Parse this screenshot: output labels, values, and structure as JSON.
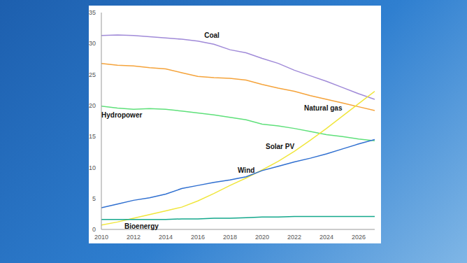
{
  "chart_data": {
    "type": "line",
    "x": [
      2010,
      2011,
      2012,
      2013,
      2014,
      2015,
      2016,
      2017,
      2018,
      2019,
      2020,
      2021,
      2022,
      2023,
      2024,
      2025,
      2026,
      2027
    ],
    "series": [
      {
        "name": "Coal",
        "color": "#a08ad8",
        "values": [
          31.3,
          31.4,
          31.3,
          31.1,
          30.9,
          30.7,
          30.4,
          29.9,
          29.0,
          28.5,
          27.6,
          26.8,
          25.7,
          24.8,
          23.9,
          22.9,
          21.9,
          21.0
        ]
      },
      {
        "name": "Natural gas",
        "color": "#f5a33a",
        "values": [
          26.8,
          26.5,
          26.4,
          26.1,
          25.9,
          25.3,
          24.7,
          24.5,
          24.4,
          24.1,
          23.4,
          22.8,
          22.3,
          21.6,
          21.0,
          20.4,
          19.8,
          19.2
        ]
      },
      {
        "name": "Hydropower",
        "color": "#5ee07a",
        "values": [
          19.9,
          19.6,
          19.4,
          19.5,
          19.4,
          19.1,
          18.8,
          18.5,
          18.1,
          17.7,
          17.0,
          16.7,
          16.3,
          15.8,
          15.3,
          15.0,
          14.6,
          14.3
        ]
      },
      {
        "name": "Solar PV",
        "color": "#f0e63c",
        "values": [
          0.7,
          1.2,
          1.8,
          2.4,
          3.0,
          3.6,
          4.6,
          5.8,
          7.1,
          8.3,
          9.6,
          11.0,
          12.6,
          14.4,
          16.3,
          18.3,
          20.3,
          22.3
        ]
      },
      {
        "name": "Wind",
        "color": "#2f6fd0",
        "values": [
          3.5,
          4.1,
          4.7,
          5.1,
          5.7,
          6.6,
          7.1,
          7.6,
          8.0,
          8.5,
          9.5,
          10.2,
          10.9,
          11.5,
          12.2,
          13.0,
          13.8,
          14.5
        ]
      },
      {
        "name": "Bioenergy",
        "color": "#14a88c",
        "values": [
          1.6,
          1.6,
          1.6,
          1.6,
          1.6,
          1.7,
          1.7,
          1.8,
          1.8,
          1.9,
          2.0,
          2.0,
          2.1,
          2.1,
          2.1,
          2.1,
          2.1,
          2.1
        ]
      }
    ],
    "xlim": [
      2010,
      2027
    ],
    "xticks": [
      2010,
      2012,
      2014,
      2016,
      2018,
      2020,
      2022,
      2024,
      2026
    ],
    "ylim": [
      0,
      35
    ],
    "yticks": [
      0,
      5,
      10,
      15,
      20,
      25,
      30,
      35
    ],
    "grid": false
  }
}
